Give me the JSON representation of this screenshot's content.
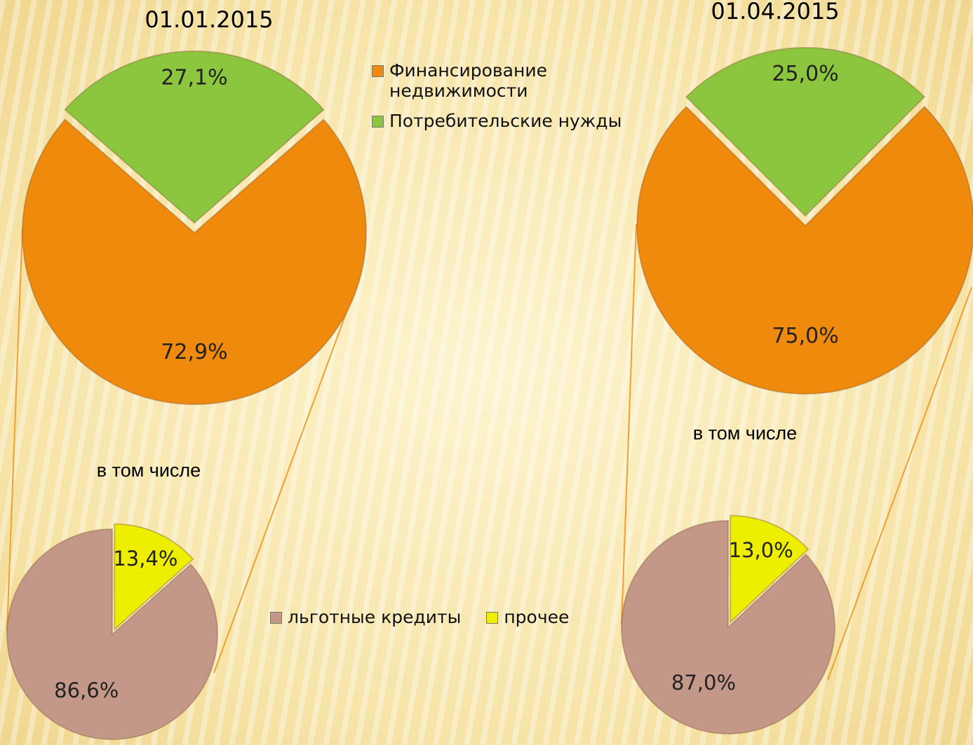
{
  "chart_data": [
    {
      "type": "pie",
      "title": "01.01.2015",
      "categories": [
        "Финансирование недвижимости",
        "Потребительские нужды"
      ],
      "values": [
        72.9,
        27.1
      ],
      "value_labels": [
        "72,9%",
        "27,1%"
      ],
      "colors": [
        "#f08a0c",
        "#8cc63f"
      ]
    },
    {
      "type": "pie",
      "title": "01.04.2015",
      "values": [
        75.0,
        25.0
      ],
      "value_labels": [
        "75,0%",
        "25,0%"
      ],
      "colors": [
        "#f08a0c",
        "#8cc63f"
      ]
    },
    {
      "type": "pie",
      "subtitle": "в том числе",
      "categories": [
        "льготные кредиты",
        "прочее"
      ],
      "values": [
        86.6,
        13.4
      ],
      "value_labels": [
        "86,6%",
        "13,4%"
      ],
      "colors": [
        "#c49888",
        "#eeee00"
      ]
    },
    {
      "type": "pie",
      "subtitle": "в том числе",
      "values": [
        87.0,
        13.0
      ],
      "value_labels": [
        "87,0%",
        "13,0%"
      ],
      "colors": [
        "#c49888",
        "#eeee00"
      ]
    }
  ]
}
